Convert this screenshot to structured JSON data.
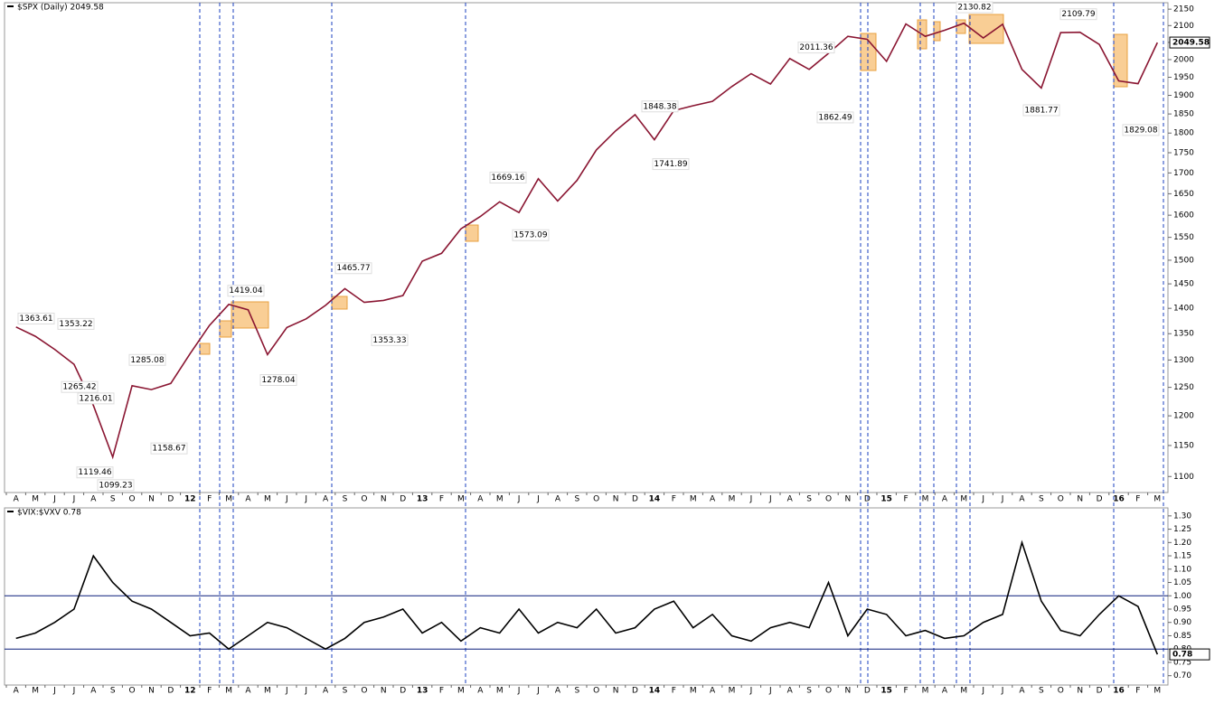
{
  "chart_data": [
    {
      "type": "line",
      "title": "$SPX (Daily) 2049.58",
      "log_scale": true,
      "categories": [
        "A",
        "M",
        "J",
        "J",
        "A",
        "S",
        "O",
        "N",
        "D",
        "12",
        "F",
        "M",
        "A",
        "M",
        "J",
        "J",
        "A",
        "S",
        "O",
        "N",
        "D",
        "13",
        "F",
        "M",
        "A",
        "M",
        "J",
        "J",
        "A",
        "S",
        "O",
        "N",
        "D",
        "14",
        "F",
        "M",
        "A",
        "M",
        "J",
        "J",
        "A",
        "S",
        "O",
        "N",
        "D",
        "15",
        "F",
        "M",
        "A",
        "M",
        "J",
        "J",
        "A",
        "S",
        "O",
        "N",
        "D",
        "16",
        "F",
        "M"
      ],
      "series": [
        {
          "name": "$SPX",
          "color": "#8a1632",
          "values": [
            1363,
            1345,
            1320,
            1292,
            1218,
            1131,
            1253,
            1246,
            1257,
            1312,
            1366,
            1408,
            1397,
            1310,
            1362,
            1379,
            1406,
            1440,
            1412,
            1416,
            1426,
            1498,
            1515,
            1569,
            1597,
            1631,
            1606,
            1686,
            1633,
            1682,
            1757,
            1806,
            1848,
            1783,
            1859,
            1872,
            1884,
            1924,
            1960,
            1931,
            2003,
            1972,
            2018,
            2068,
            2059,
            1995,
            2105,
            2068,
            2086,
            2107,
            2063,
            2104,
            1972,
            1920,
            2079,
            2080,
            2044,
            1940,
            1932,
            2049.58
          ]
        }
      ],
      "annotations": [
        {
          "label": "1363.61",
          "value": 1363.61
        },
        {
          "label": "1353.22",
          "value": 1353.22
        },
        {
          "label": "1265.42",
          "value": 1265.42
        },
        {
          "label": "1119.46",
          "value": 1119.46
        },
        {
          "label": "1216.01",
          "value": 1216.01
        },
        {
          "label": "1099.23",
          "value": 1099.23
        },
        {
          "label": "1285.08",
          "value": 1285.08
        },
        {
          "label": "1158.67",
          "value": 1158.67
        },
        {
          "label": "1419.04",
          "value": 1419.04
        },
        {
          "label": "1278.04",
          "value": 1278.04
        },
        {
          "label": "1465.77",
          "value": 1465.77
        },
        {
          "label": "1353.33",
          "value": 1353.33
        },
        {
          "label": "1669.16",
          "value": 1669.16
        },
        {
          "label": "1573.09",
          "value": 1573.09
        },
        {
          "label": "1848.38",
          "value": 1848.38
        },
        {
          "label": "1741.89",
          "value": 1741.89
        },
        {
          "label": "2011.36",
          "value": 2011.36
        },
        {
          "label": "1862.49",
          "value": 1862.49
        },
        {
          "label": "2130.82",
          "value": 2130.82
        },
        {
          "label": "1881.77",
          "value": 1881.77
        },
        {
          "label": "2109.79",
          "value": 2109.79
        },
        {
          "label": "1829.08",
          "value": 1829.08
        }
      ],
      "ylim": [
        1075,
        2170
      ],
      "yticks": [
        1100,
        1150,
        1200,
        1250,
        1300,
        1350,
        1400,
        1450,
        1500,
        1550,
        1600,
        1650,
        1700,
        1750,
        1800,
        1850,
        1900,
        1950,
        2000,
        2050,
        2100,
        2150
      ]
    },
    {
      "type": "line",
      "title": "$VIX:$VXV 0.78",
      "log_scale": false,
      "categories": [
        "A",
        "M",
        "J",
        "J",
        "A",
        "S",
        "O",
        "N",
        "D",
        "12",
        "F",
        "M",
        "A",
        "M",
        "J",
        "J",
        "A",
        "S",
        "O",
        "N",
        "D",
        "13",
        "F",
        "M",
        "A",
        "M",
        "J",
        "J",
        "A",
        "S",
        "O",
        "N",
        "D",
        "14",
        "F",
        "M",
        "A",
        "M",
        "J",
        "J",
        "A",
        "S",
        "O",
        "N",
        "D",
        "15",
        "F",
        "M",
        "A",
        "M",
        "J",
        "J",
        "A",
        "S",
        "O",
        "N",
        "D",
        "16",
        "F",
        "M"
      ],
      "series": [
        {
          "name": "$VIX:$VXV",
          "color": "#000000",
          "values": [
            0.84,
            0.86,
            0.9,
            0.95,
            1.15,
            1.05,
            0.98,
            0.95,
            0.9,
            0.85,
            0.86,
            0.8,
            0.85,
            0.9,
            0.88,
            0.84,
            0.8,
            0.84,
            0.9,
            0.92,
            0.95,
            0.86,
            0.9,
            0.83,
            0.88,
            0.86,
            0.95,
            0.86,
            0.9,
            0.88,
            0.95,
            0.86,
            0.88,
            0.95,
            0.98,
            0.88,
            0.93,
            0.85,
            0.83,
            0.88,
            0.9,
            0.88,
            1.05,
            0.85,
            0.95,
            0.93,
            0.85,
            0.87,
            0.84,
            0.85,
            0.9,
            0.93,
            1.2,
            0.98,
            0.87,
            0.85,
            0.93,
            1.0,
            0.96,
            0.78
          ]
        }
      ],
      "reference_lines": [
        1.0,
        0.8
      ],
      "ylim": [
        0.665,
        1.33
      ],
      "yticks": [
        {
          "value": 0.7,
          "label": "0.70"
        },
        {
          "value": 0.75,
          "label": "0.75"
        },
        {
          "value": 0.8,
          "label": "0.80"
        },
        {
          "value": 0.85,
          "label": "0.85"
        },
        {
          "value": 0.9,
          "label": "0.90"
        },
        {
          "value": 0.95,
          "label": "0.95"
        },
        {
          "value": 1.0,
          "label": "1.00"
        },
        {
          "value": 1.05,
          "label": "1.05"
        },
        {
          "value": 1.1,
          "label": "1.10"
        },
        {
          "value": 1.15,
          "label": "1.15"
        },
        {
          "value": 1.2,
          "label": "1.20"
        },
        {
          "value": 1.25,
          "label": "1.25"
        },
        {
          "value": 1.3,
          "label": "1.30"
        }
      ]
    }
  ]
}
